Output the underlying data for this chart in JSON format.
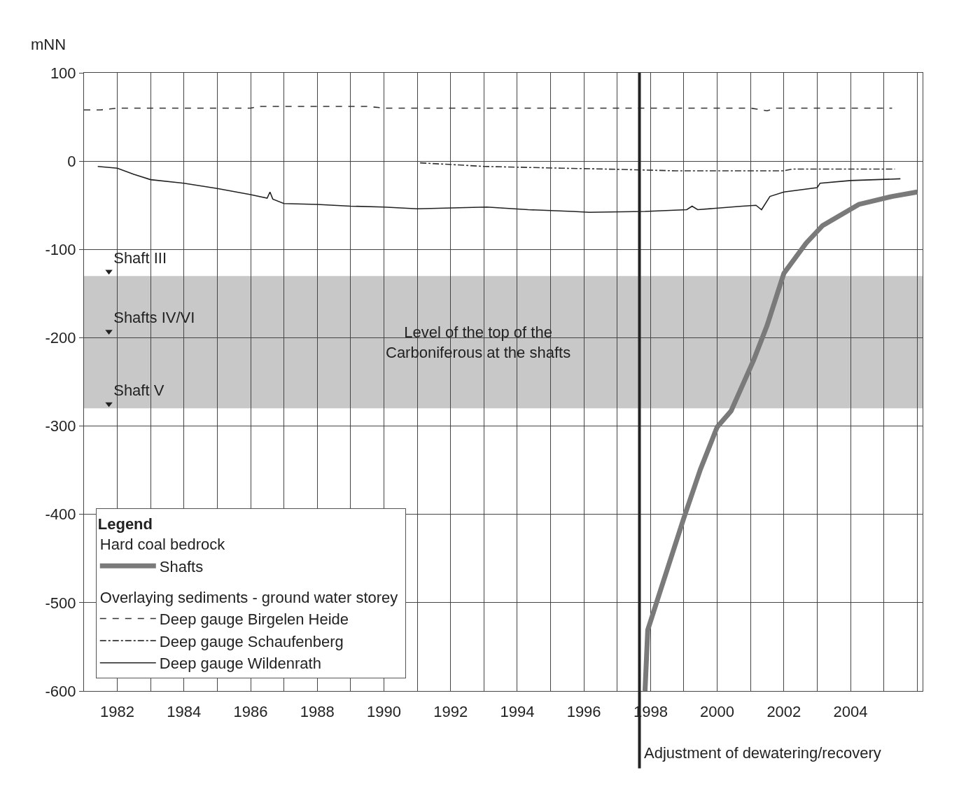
{
  "chart_data": {
    "type": "line",
    "ylabel": "mNN",
    "legend_title": "Legend",
    "xlim": [
      "1981-01",
      "2006-03"
    ],
    "xticks": [
      {
        "value": "1981",
        "label": null
      },
      "1982",
      {
        "value": "1983",
        "label": null
      },
      "1984",
      {
        "value": "1985",
        "label": null
      },
      "1986",
      {
        "value": "1987",
        "label": null
      },
      "1988",
      {
        "value": "1989",
        "label": null
      },
      "1990",
      {
        "value": "1991",
        "label": null
      },
      "1992",
      {
        "value": "1993",
        "label": null
      },
      "1994",
      {
        "value": "1995",
        "label": null
      },
      "1996",
      {
        "value": "1997",
        "label": null
      },
      "1998",
      {
        "value": "1999",
        "label": null
      },
      "2000",
      {
        "value": "2001",
        "label": null
      },
      "2002",
      {
        "value": "2003",
        "label": null
      },
      "2004",
      {
        "value": "2005",
        "label": null
      },
      {
        "value": "2006",
        "label": null
      }
    ],
    "ylim": [
      -600,
      100
    ],
    "yticks": [
      100,
      0,
      -100,
      -200,
      -300,
      -400,
      -500,
      -600
    ],
    "grid": true,
    "legend": "bottom left",
    "marker": "none",
    "series": [
      {
        "name": "Shafts",
        "color": "#7a7a7a",
        "line_style": "solid",
        "x": [
          "1997-11",
          "1997-12",
          "1998-04",
          "1999-01",
          "1999-07",
          "2000-01",
          "2000-06",
          "2001-02",
          "2001-07",
          "2002-01",
          "2002-09",
          "2003-03",
          "2004-04",
          "2005-04",
          "2006-01"
        ],
        "values": [
          -600,
          -531,
          -492,
          -404,
          -349,
          -301,
          -283,
          -226,
          -186,
          -127,
          -93,
          -73,
          -49,
          -40,
          -35
        ]
      },
      {
        "name": "Deep gauge Birgelen Heide",
        "color": "#333333",
        "line_style": "dashed",
        "x": [
          "1981-01",
          "1981-07",
          "1982-01",
          "1986-01",
          "1986-04",
          "1989-07",
          "1990-01",
          "2001-01",
          "2001-07",
          "2001-10",
          "2005-04"
        ],
        "values": [
          58,
          58,
          60,
          60,
          62,
          62,
          60,
          60,
          57,
          60,
          60
        ]
      },
      {
        "name": "Deep gauge Schaufenberg",
        "color": "#333333",
        "line_style": "dashdot",
        "x": [
          "1991-02",
          "1992-02",
          "1993-01",
          "1995-05",
          "1996-09",
          "1997-10",
          "1998-10",
          "2002-01",
          "2002-04",
          "2005-05"
        ],
        "values": [
          -2,
          -4,
          -6,
          -8,
          -9,
          -10,
          -11,
          -11,
          -9,
          -9
        ]
      },
      {
        "name": "Deep gauge Wildenrath",
        "color": "#222222",
        "line_style": "solid",
        "x": [
          "1981-06",
          "1982-01",
          "1982-07",
          "1983-01",
          "1984-01",
          "1985-01",
          "1986-01",
          "1986-07",
          "1986-08",
          "1986-09",
          "1987-01",
          "1988-01",
          "1989-01",
          "1990-01",
          "1991-01",
          "1993-02",
          "1994-05",
          "1995-09",
          "1996-03",
          "1997-11",
          "1999-02",
          "1999-04",
          "1999-06",
          "2000-10",
          "2001-03",
          "2001-05",
          "2001-08",
          "2002-01",
          "2003-01",
          "2003-02",
          "2004-01",
          "2005-07"
        ],
        "values": [
          -6,
          -8,
          -15,
          -21,
          -25,
          -31,
          -38,
          -42,
          -35,
          -43,
          -48,
          -49,
          -51,
          -52,
          -54,
          -52,
          -55,
          -57,
          -58,
          -57,
          -55,
          -51,
          -55,
          -51,
          -50,
          -55,
          -40,
          -35,
          -30,
          -25,
          -22,
          -20
        ]
      },
      {
        "type": "scatter",
        "color": "#222222",
        "marker": "triangle",
        "x": [
          "1981-10",
          "1981-10",
          "1981-10"
        ],
        "values": [
          -125,
          -193,
          -275
        ],
        "value_labels": [
          "Shaft III",
          "Shafts IV/VI",
          "Shaft V"
        ]
      }
    ],
    "bands": [
      {
        "axis": "y",
        "from": -280,
        "to": -130,
        "label": "Level of the top of the Carboniferous at the shafts",
        "color": "#c8c8c8"
      }
    ],
    "ref_lines": [
      {
        "axis": "x",
        "value": "1997-09",
        "label": "Adjustment of dewatering/recovery",
        "color": "#222222"
      }
    ],
    "annotations": [
      "Hard coal bedrock",
      "Overlaying sediments - ground water storey"
    ]
  }
}
